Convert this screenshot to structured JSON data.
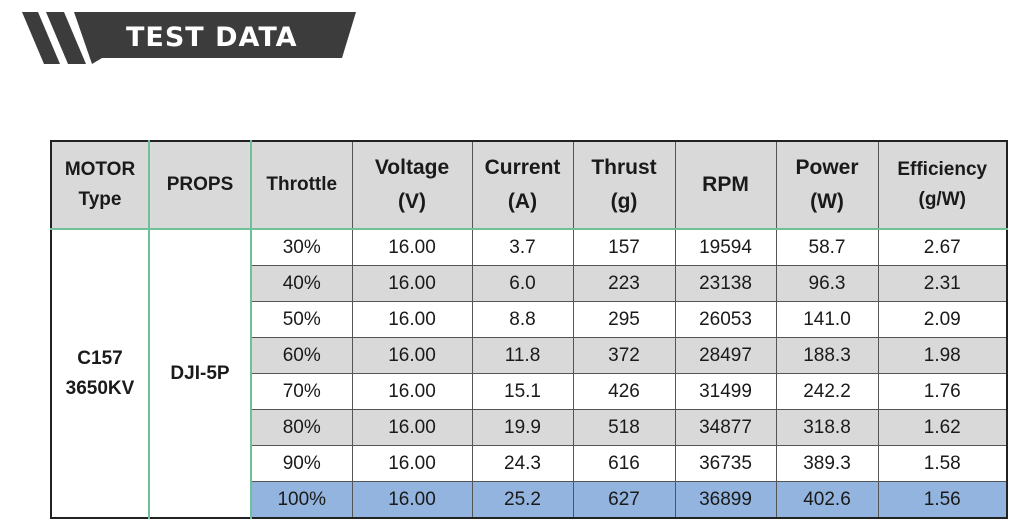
{
  "banner": {
    "title": "TEST DATA"
  },
  "chart_data": {
    "type": "table",
    "columns": [
      {
        "name": "MOTOR",
        "unit": "Type"
      },
      {
        "name": "PROPS",
        "unit": ""
      },
      {
        "name": "Throttle",
        "unit": ""
      },
      {
        "name": "Voltage",
        "unit": "(V)"
      },
      {
        "name": "Current",
        "unit": "(A)"
      },
      {
        "name": "Thrust",
        "unit": "(g)"
      },
      {
        "name": "RPM",
        "unit": ""
      },
      {
        "name": "Power",
        "unit": "(W)"
      },
      {
        "name": "Efficiency",
        "unit": "(g/W)"
      }
    ],
    "motor": {
      "line1": "C157",
      "line2": "3650KV"
    },
    "props": "DJI-5P",
    "rows": [
      {
        "throttle": "30%",
        "voltage": "16.00",
        "current": "3.7",
        "thrust": "157",
        "rpm": "19594",
        "power": "58.7",
        "efficiency": "2.67"
      },
      {
        "throttle": "40%",
        "voltage": "16.00",
        "current": "6.0",
        "thrust": "223",
        "rpm": "23138",
        "power": "96.3",
        "efficiency": "2.31"
      },
      {
        "throttle": "50%",
        "voltage": "16.00",
        "current": "8.8",
        "thrust": "295",
        "rpm": "26053",
        "power": "141.0",
        "efficiency": "2.09"
      },
      {
        "throttle": "60%",
        "voltage": "16.00",
        "current": "11.8",
        "thrust": "372",
        "rpm": "28497",
        "power": "188.3",
        "efficiency": "1.98"
      },
      {
        "throttle": "70%",
        "voltage": "16.00",
        "current": "15.1",
        "thrust": "426",
        "rpm": "31499",
        "power": "242.2",
        "efficiency": "1.76"
      },
      {
        "throttle": "80%",
        "voltage": "16.00",
        "current": "19.9",
        "thrust": "518",
        "rpm": "34877",
        "power": "318.8",
        "efficiency": "1.62"
      },
      {
        "throttle": "90%",
        "voltage": "16.00",
        "current": "24.3",
        "thrust": "616",
        "rpm": "36735",
        "power": "389.3",
        "efficiency": "1.58"
      },
      {
        "throttle": "100%",
        "voltage": "16.00",
        "current": "25.2",
        "thrust": "627",
        "rpm": "36899",
        "power": "402.6",
        "efficiency": "1.56"
      }
    ]
  },
  "colors": {
    "banner": "#3c3c3c",
    "header_bg": "#d9d9d9",
    "stripe": "#d9d9d9",
    "highlight_row": "#92b4de",
    "divider": "#6fbf99"
  }
}
